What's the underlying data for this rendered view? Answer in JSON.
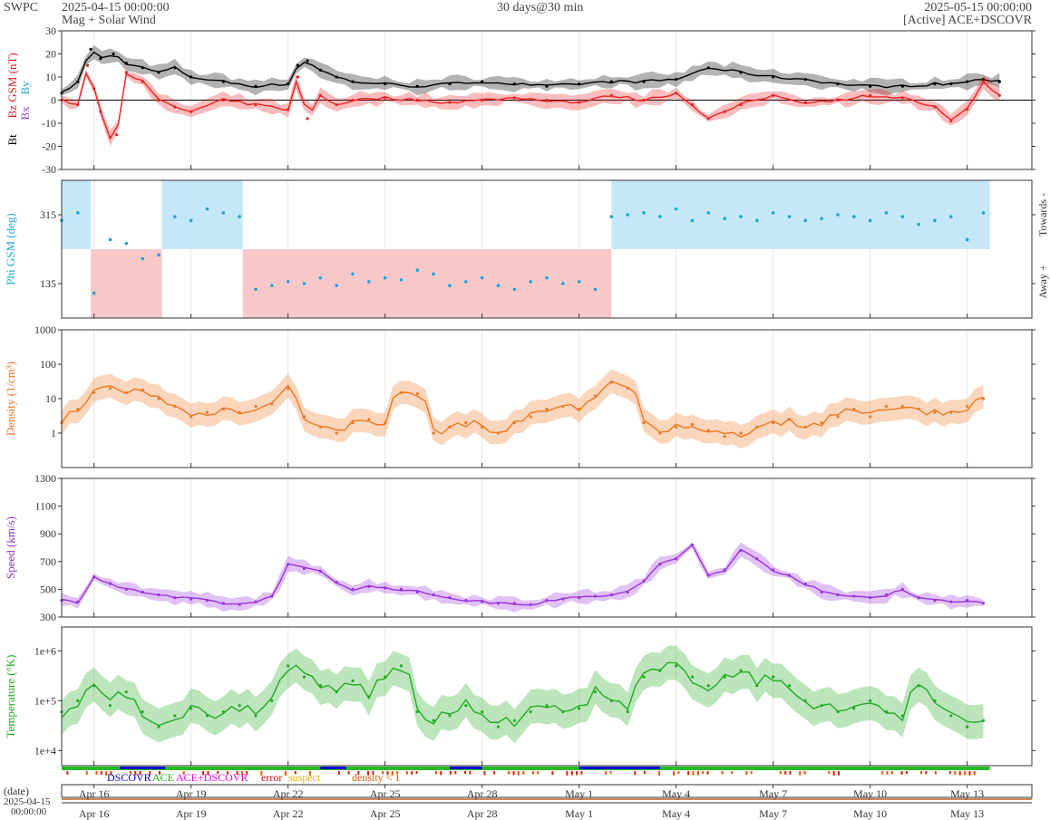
{
  "header": {
    "org": "SWPC",
    "start": "2025-04-15 00:00:00",
    "subtitle": "Mag + Solar Wind",
    "resolution": "30 days@30 min",
    "end": "2025-05-15 00:00:00",
    "source": "[Active] ACE+DSCOVR"
  },
  "bottom": {
    "date_label": "(date)",
    "date_value": "2025-04-15",
    "time_value": "00:00:00"
  },
  "legend": [
    {
      "label": "DSCOVR",
      "color": "#0000cc"
    },
    {
      "label": "ACE",
      "color": "#22aa22"
    },
    {
      "label": "ACE+DSCOVR",
      "color": "#ee00ee"
    },
    {
      "label": "error",
      "color": "#dd0000"
    },
    {
      "label": "suspect",
      "color": "#eeaa00"
    },
    {
      "label": "density < 1",
      "color": "#ee5500"
    }
  ],
  "chart_data": [
    {
      "type": "line",
      "id": "mag",
      "ylabels": [
        {
          "text": "Bt",
          "color": "#000000"
        },
        {
          "text": "Bz GSM (nT)",
          "color": "#dd2222"
        },
        {
          "text": "Bx",
          "color": "#8844cc"
        },
        {
          "text": "By",
          "color": "#22aacc"
        }
      ],
      "ylim": [
        -30,
        30
      ],
      "yticks": [
        "30",
        "20",
        "10",
        "0",
        "-10",
        "-20",
        "-30"
      ],
      "series": [
        {
          "name": "Bt",
          "color": "#000000",
          "x": [
            0,
            0.5,
            0.9,
            1.2,
            1.6,
            2,
            2.5,
            3,
            3.5,
            4,
            5,
            6,
            7,
            7.3,
            7.6,
            8,
            8.5,
            9,
            10,
            11,
            12,
            13,
            14,
            15,
            16,
            17,
            18,
            19,
            20,
            21,
            22,
            23,
            24,
            25,
            26,
            27,
            27.5,
            28,
            28.5,
            29
          ],
          "y": [
            3,
            8,
            22,
            18,
            20,
            16,
            14,
            12,
            14,
            10,
            8,
            6,
            7,
            15,
            17,
            13,
            10,
            8,
            7,
            6,
            7,
            8,
            7,
            6,
            7,
            8,
            8,
            9,
            14,
            12,
            10,
            9,
            7,
            6,
            6,
            7,
            7,
            8,
            9,
            8
          ]
        },
        {
          "name": "Bz GSM",
          "color": "#ee2222",
          "x": [
            0,
            0.5,
            0.8,
            1,
            1.2,
            1.5,
            1.7,
            2,
            2.5,
            3,
            3.5,
            4,
            5,
            6,
            7,
            7.3,
            7.6,
            8,
            8.5,
            9,
            10,
            11,
            12,
            13,
            14,
            15,
            16,
            17,
            18,
            19,
            19.5,
            20,
            20.5,
            21,
            22,
            23,
            24,
            25,
            26,
            27,
            27.5,
            28,
            28.5,
            29
          ],
          "y": [
            0,
            -2,
            15,
            5,
            -5,
            -16,
            -15,
            12,
            8,
            0,
            -3,
            -5,
            0,
            -2,
            -4,
            10,
            -8,
            2,
            -2,
            0,
            1,
            0,
            -1,
            0,
            1,
            0,
            -1,
            2,
            0,
            3,
            -2,
            -8,
            -5,
            -2,
            2,
            -1,
            0,
            2,
            1,
            -3,
            -9,
            -4,
            8,
            2
          ]
        }
      ]
    },
    {
      "type": "scatter",
      "id": "phi",
      "ylabel": "Phi GSM (deg)",
      "ylabel_color": "#22aacc",
      "ylim": [
        45,
        405
      ],
      "yticks": [
        "315",
        "135"
      ],
      "right_labels": [
        "Towards -",
        "Away +"
      ],
      "sectors": [
        {
          "x0": 0,
          "x1": 0.9,
          "sign": "toward"
        },
        {
          "x0": 0.9,
          "x1": 3.1,
          "sign": "away"
        },
        {
          "x0": 3.1,
          "x1": 5.6,
          "sign": "toward"
        },
        {
          "x0": 5.6,
          "x1": 17.0,
          "sign": "away"
        },
        {
          "x0": 17.0,
          "x1": 28.7,
          "sign": "toward"
        }
      ],
      "series": [
        {
          "name": "Phi",
          "color": "#1aa3e0",
          "x": [
            0,
            0.5,
            1,
            1.5,
            2,
            2.5,
            3,
            3.5,
            4,
            4.5,
            5,
            5.5,
            6,
            6.5,
            7,
            7.5,
            8,
            8.5,
            9,
            9.5,
            10,
            10.5,
            11,
            11.5,
            12,
            12.5,
            13,
            13.5,
            14,
            14.5,
            15,
            15.5,
            16,
            16.5,
            17,
            17.5,
            18,
            18.5,
            19,
            19.5,
            20,
            20.5,
            21,
            21.5,
            22,
            22.5,
            23,
            23.5,
            24,
            24.5,
            25,
            25.5,
            26,
            26.5,
            27,
            27.5,
            28,
            28.5
          ],
          "y": [
            300,
            320,
            110,
            250,
            240,
            200,
            210,
            310,
            300,
            330,
            320,
            310,
            120,
            130,
            140,
            135,
            150,
            130,
            160,
            140,
            150,
            145,
            170,
            160,
            130,
            140,
            150,
            130,
            120,
            140,
            150,
            135,
            140,
            120,
            310,
            315,
            320,
            310,
            330,
            300,
            320,
            305,
            310,
            300,
            320,
            310,
            300,
            305,
            315,
            310,
            300,
            320,
            310,
            290,
            300,
            310,
            250,
            320
          ]
        }
      ]
    },
    {
      "type": "line",
      "id": "density",
      "ylabel": "Density (1/cm³)",
      "ylabel_color": "#ee7722",
      "yscale": "log",
      "ylim": [
        0.1,
        1000
      ],
      "yticks": [
        "1000",
        "100",
        "10",
        "1"
      ],
      "series": [
        {
          "name": "Density",
          "color": "#ee7722",
          "x": [
            0,
            0.5,
            1,
            1.5,
            2,
            2.5,
            3,
            3.5,
            4,
            4.5,
            5,
            5.5,
            6,
            6.5,
            7,
            7.5,
            8,
            8.5,
            9,
            9.5,
            10,
            10.5,
            11,
            11.5,
            12,
            12.5,
            13,
            13.5,
            14,
            14.5,
            15,
            15.5,
            16,
            16.5,
            17,
            17.5,
            18,
            18.5,
            19,
            19.5,
            20,
            20.5,
            21,
            21.5,
            22,
            22.5,
            23,
            23.5,
            24,
            24.5,
            25,
            25.5,
            26,
            26.5,
            27,
            27.5,
            28,
            28.5
          ],
          "y": [
            2,
            5,
            15,
            20,
            15,
            18,
            10,
            6,
            3,
            4,
            5,
            4,
            6,
            7,
            20,
            3,
            1.5,
            1,
            2,
            2.5,
            2,
            15,
            14,
            1,
            1.5,
            2,
            1.5,
            1,
            2,
            3,
            5,
            6,
            5,
            12,
            30,
            20,
            2,
            1,
            1.5,
            1.8,
            1.2,
            0.8,
            1,
            1.5,
            2,
            2.5,
            1.5,
            2,
            3,
            5,
            3,
            6,
            6,
            5,
            4,
            4,
            6,
            10
          ]
        }
      ]
    },
    {
      "type": "line",
      "id": "speed",
      "ylabel": "Speed (km/s)",
      "ylabel_color": "#8833cc",
      "ylim": [
        300,
        1300
      ],
      "yticks": [
        "1300",
        "1100",
        "900",
        "700",
        "500",
        "300"
      ],
      "series": [
        {
          "name": "Speed",
          "color": "#9933dd",
          "x": [
            0,
            0.5,
            1,
            1.5,
            2,
            2.5,
            3,
            3.5,
            4,
            4.5,
            5,
            5.5,
            6,
            6.5,
            7,
            7.5,
            8,
            8.5,
            9,
            9.5,
            10,
            10.5,
            11,
            11.5,
            12,
            12.5,
            13,
            13.5,
            14,
            14.5,
            15,
            15.5,
            16,
            16.5,
            17,
            17.5,
            18,
            18.5,
            19,
            19.5,
            20,
            20.5,
            21,
            21.5,
            22,
            22.5,
            23,
            23.5,
            24,
            24.5,
            25,
            25.5,
            26,
            26.5,
            27,
            27.5,
            28,
            28.5
          ],
          "y": [
            420,
            410,
            590,
            540,
            500,
            480,
            460,
            440,
            430,
            420,
            400,
            390,
            410,
            450,
            680,
            650,
            630,
            550,
            500,
            520,
            510,
            500,
            480,
            460,
            440,
            420,
            410,
            400,
            400,
            390,
            420,
            430,
            440,
            450,
            460,
            480,
            560,
            680,
            720,
            820,
            600,
            640,
            780,
            720,
            640,
            600,
            540,
            480,
            460,
            450,
            440,
            460,
            500,
            440,
            420,
            410,
            420,
            400
          ]
        }
      ]
    },
    {
      "type": "line",
      "id": "temperature",
      "ylabel": "Temperature (°K)",
      "ylabel_color": "#22aa22",
      "yscale": "log",
      "ylim": [
        5000,
        3000000
      ],
      "yticks": [
        "1e+6",
        "1e+5",
        "1e+4"
      ],
      "series": [
        {
          "name": "Temperature",
          "color": "#22aa22",
          "x": [
            0,
            0.5,
            1,
            1.5,
            2,
            2.5,
            3,
            3.5,
            4,
            4.5,
            5,
            5.5,
            6,
            6.5,
            7,
            7.5,
            8,
            8.5,
            9,
            9.5,
            10,
            10.5,
            11,
            11.5,
            12,
            12.5,
            13,
            13.5,
            14,
            14.5,
            15,
            15.5,
            16,
            16.5,
            17,
            17.5,
            18,
            18.5,
            19,
            19.5,
            20,
            20.5,
            21,
            21.5,
            22,
            22.5,
            23,
            23.5,
            24,
            24.5,
            25,
            25.5,
            26,
            26.5,
            27,
            27.5,
            28,
            28.5
          ],
          "y": [
            60000,
            100000,
            200000,
            80000,
            150000,
            60000,
            30000,
            50000,
            70000,
            50000,
            60000,
            80000,
            50000,
            100000,
            500000,
            300000,
            200000,
            150000,
            250000,
            120000,
            300000,
            500000,
            60000,
            40000,
            50000,
            80000,
            60000,
            30000,
            40000,
            60000,
            80000,
            60000,
            70000,
            150000,
            100000,
            60000,
            300000,
            400000,
            500000,
            300000,
            200000,
            300000,
            400000,
            200000,
            300000,
            200000,
            100000,
            80000,
            60000,
            70000,
            100000,
            60000,
            50000,
            200000,
            100000,
            50000,
            30000,
            40000
          ]
        }
      ]
    }
  ],
  "axis": {
    "xlim": [
      0,
      30
    ],
    "ticks": [
      {
        "label": "Apr 16",
        "day": 1
      },
      {
        "label": "Apr 19",
        "day": 4
      },
      {
        "label": "Apr 22",
        "day": 7
      },
      {
        "label": "Apr 25",
        "day": 10
      },
      {
        "label": "Apr 28",
        "day": 13
      },
      {
        "label": "May 1",
        "day": 16
      },
      {
        "label": "May 4",
        "day": 19
      },
      {
        "label": "May 7",
        "day": 22
      },
      {
        "label": "May 10",
        "day": 25
      },
      {
        "label": "May 13",
        "day": 28
      }
    ]
  }
}
